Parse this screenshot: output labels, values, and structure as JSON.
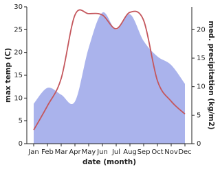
{
  "chart_data": {
    "type": "line-area",
    "x_label": "date (month)",
    "y_label": "max temp (C)",
    "y2_label": "med. precipitation (kg/m2)",
    "categories": [
      "Jan",
      "Feb",
      "Mar",
      "Apr",
      "May",
      "Jun",
      "Jul",
      "Aug",
      "Sep",
      "Oct",
      "Nov",
      "Dec"
    ],
    "ylim": [
      0,
      30
    ],
    "yticks": [
      0,
      5,
      10,
      15,
      20,
      25,
      30
    ],
    "y2lim": [
      0,
      24
    ],
    "y2ticks": [
      0,
      5,
      10,
      15,
      20
    ],
    "series": [
      {
        "name": "max temp",
        "type": "line",
        "color": "#c4565c",
        "values": [
          3,
          8.3,
          14.3,
          28.2,
          28.5,
          28.2,
          25.2,
          28.8,
          27,
          13.8,
          9.3,
          6.5
        ]
      },
      {
        "name": "med. precipitation",
        "type": "area",
        "axis": "y2",
        "color": "#aab3ec",
        "values": [
          7,
          9.8,
          8.6,
          7.4,
          16.8,
          23,
          20,
          22.7,
          18,
          15.3,
          13.8,
          10.5
        ]
      }
    ]
  }
}
